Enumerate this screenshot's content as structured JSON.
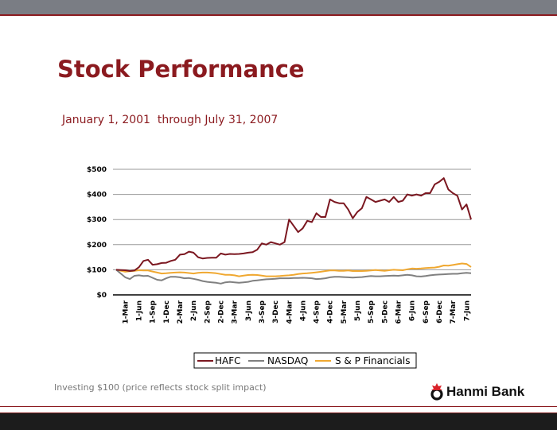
{
  "header": {
    "title": "Stock Performance",
    "subtitle": "January 1, 2001  through July 31, 2007"
  },
  "footer": {
    "note": "Investing $100 (price reflects stock split impact)",
    "logo_text": "Hanmi Bank"
  },
  "colors": {
    "brand_red": "#8b1a1f",
    "hafc": "#7b1720",
    "nasdaq": "#808080",
    "sp_financials": "#f0a830",
    "grid": "#9a9a9a"
  },
  "chart_data": {
    "type": "line",
    "title": "",
    "xlabel": "",
    "ylabel": "",
    "ylim": [
      0,
      500
    ],
    "yticks": [
      0,
      100,
      200,
      300,
      400,
      500
    ],
    "ytick_labels": [
      "$0",
      "$100",
      "$200",
      "$300",
      "$400",
      "$500"
    ],
    "x_start": "Jan 2001",
    "x_step": "month",
    "xtick_labels": [
      "1-Mar",
      "1-Jun",
      "1-Sep",
      "1-Dec",
      "2-Mar",
      "2-Jun",
      "2-Sep",
      "2-Dec",
      "3-Mar",
      "3-Jun",
      "3-Sep",
      "3-Dec",
      "4-Mar",
      "4-Jun",
      "4-Sep",
      "4-Dec",
      "5-Mar",
      "5-Jun",
      "5-Sep",
      "5-Dec",
      "6-Mar",
      "6-Jun",
      "6-Sep",
      "6-Dec",
      "7-Mar",
      "7-Jun"
    ],
    "grid": true,
    "legend_position": "bottom",
    "series": [
      {
        "name": "HAFC",
        "color": "#7b1720",
        "values": [
          100,
          99,
          98,
          95,
          97,
          110,
          135,
          140,
          120,
          122,
          127,
          128,
          135,
          140,
          160,
          162,
          172,
          168,
          150,
          145,
          147,
          148,
          148,
          165,
          160,
          163,
          162,
          163,
          165,
          168,
          170,
          180,
          205,
          200,
          210,
          205,
          200,
          210,
          300,
          275,
          250,
          265,
          295,
          290,
          325,
          310,
          310,
          380,
          370,
          365,
          365,
          340,
          305,
          330,
          345,
          390,
          380,
          370,
          375,
          380,
          370,
          390,
          370,
          375,
          400,
          395,
          400,
          395,
          405,
          405,
          440,
          450,
          465,
          420,
          405,
          395,
          340,
          360,
          300
        ]
      },
      {
        "name": "NASDAQ",
        "color": "#808080",
        "values": [
          100,
          85,
          70,
          63,
          76,
          78,
          75,
          76,
          68,
          60,
          58,
          66,
          72,
          72,
          70,
          66,
          67,
          64,
          60,
          55,
          52,
          50,
          48,
          45,
          50,
          52,
          50,
          48,
          50,
          52,
          56,
          58,
          60,
          62,
          63,
          64,
          66,
          66,
          66,
          67,
          67,
          68,
          67,
          66,
          63,
          64,
          66,
          70,
          72,
          72,
          71,
          70,
          69,
          70,
          71,
          73,
          75,
          74,
          74,
          75,
          76,
          77,
          76,
          78,
          80,
          78,
          74,
          73,
          75,
          78,
          80,
          81,
          82,
          83,
          84,
          84,
          86,
          88,
          86
        ]
      },
      {
        "name": "S & P Financials",
        "color": "#f0a830",
        "values": [
          100,
          96,
          92,
          94,
          96,
          98,
          97,
          97,
          93,
          89,
          85,
          86,
          88,
          89,
          90,
          89,
          87,
          85,
          88,
          89,
          89,
          88,
          86,
          83,
          80,
          80,
          78,
          74,
          77,
          79,
          80,
          79,
          77,
          74,
          74,
          74,
          75,
          77,
          78,
          80,
          83,
          85,
          86,
          88,
          90,
          92,
          95,
          97,
          97,
          96,
          96,
          97,
          95,
          95,
          95,
          96,
          97,
          99,
          97,
          96,
          98,
          100,
          99,
          98,
          102,
          105,
          104,
          105,
          107,
          108,
          109,
          112,
          117,
          116,
          119,
          122,
          125,
          123,
          111
        ]
      }
    ]
  }
}
